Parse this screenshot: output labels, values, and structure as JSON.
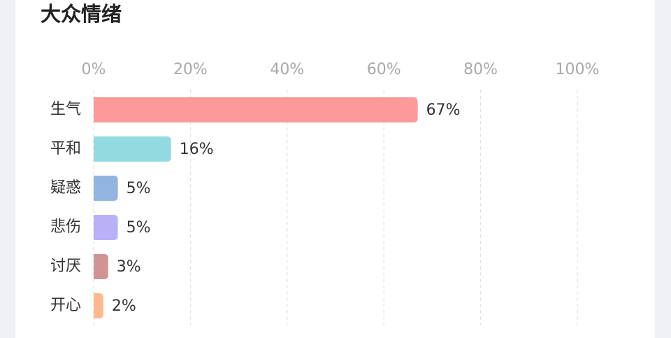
{
  "chart_data": {
    "type": "bar",
    "orientation": "horizontal",
    "title": "大众情绪",
    "categories": [
      "生气",
      "平和",
      "疑惑",
      "悲伤",
      "讨厌",
      "开心"
    ],
    "values": [
      67,
      16,
      5,
      5,
      3,
      2
    ],
    "value_labels": [
      "67%",
      "16%",
      "5%",
      "5%",
      "3%",
      "2%"
    ],
    "colors": [
      "#fc9a9a",
      "#93d9e0",
      "#93b4e0",
      "#b9b0fa",
      "#d09494",
      "#ffb98c"
    ],
    "xlim": [
      0,
      100
    ],
    "xticks": [
      {
        "value": 0,
        "label": "0%"
      },
      {
        "value": 20,
        "label": "20%"
      },
      {
        "value": 40,
        "label": "40%"
      },
      {
        "value": 60,
        "label": "60%"
      },
      {
        "value": 80,
        "label": "80%"
      },
      {
        "value": 100,
        "label": "100%"
      }
    ],
    "grid": true
  }
}
